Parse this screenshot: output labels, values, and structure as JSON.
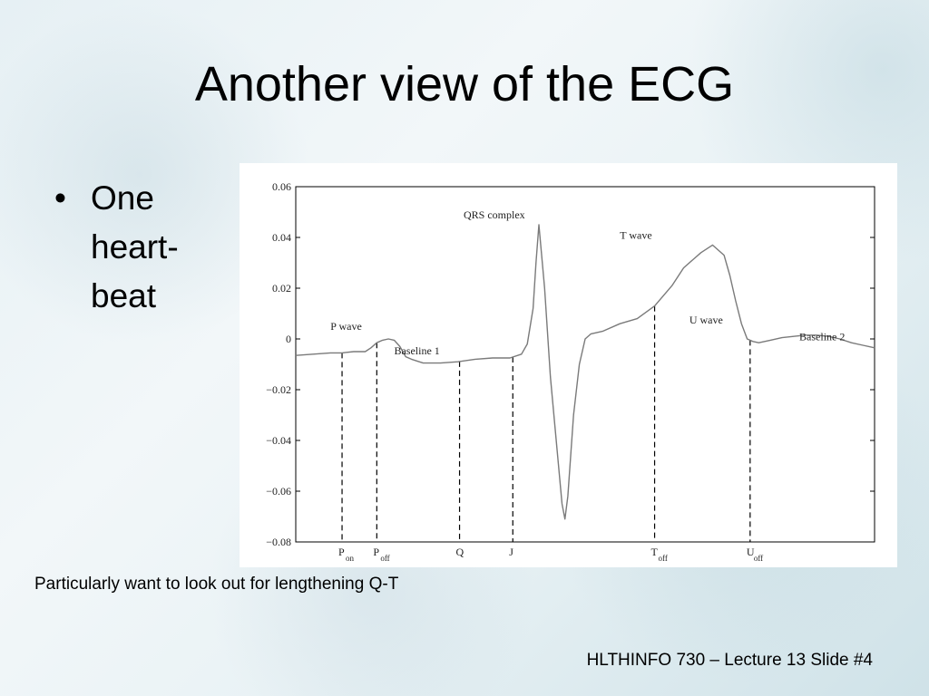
{
  "slide": {
    "title": "Another view of the ECG",
    "bullets": [
      "One heart-beat"
    ],
    "caption": "Particularly want to look out for lengthening Q-T",
    "footer": "HLTHINFO 730 – Lecture 13 Slide #4"
  },
  "chart_data": {
    "type": "line",
    "title": "",
    "xlabel": "",
    "ylabel": "",
    "ylim": [
      -0.08,
      0.06
    ],
    "xlim": [
      0,
      100
    ],
    "grid": false,
    "yticks": [
      0.06,
      0.04,
      0.02,
      0,
      -0.02,
      -0.04,
      -0.06,
      -0.08
    ],
    "ytick_labels": [
      "0.06",
      "0.04",
      "0.02",
      "0",
      "−0.02",
      "−0.04",
      "−0.06",
      "−0.08"
    ],
    "series": [
      {
        "x": [
          0,
          3,
          6,
          8,
          10,
          12,
          13,
          14,
          15,
          16,
          17,
          18,
          19,
          20,
          22,
          25,
          28,
          31,
          34,
          37,
          39,
          40,
          41,
          41.5,
          42,
          43,
          44,
          45,
          46,
          46.5,
          47,
          48,
          49,
          50,
          51,
          53,
          56,
          59,
          62,
          65,
          67,
          70,
          72,
          74,
          75,
          76,
          77,
          78,
          79,
          80,
          81,
          82,
          84,
          86,
          88,
          90,
          92,
          94,
          96,
          98,
          100
        ],
        "y": [
          -0.0065,
          -0.006,
          -0.0055,
          -0.0055,
          -0.005,
          -0.005,
          -0.0035,
          -0.0015,
          -0.0005,
          0.0,
          -0.0005,
          -0.003,
          -0.007,
          -0.008,
          -0.0095,
          -0.0095,
          -0.009,
          -0.008,
          -0.0075,
          -0.0075,
          -0.006,
          -0.002,
          0.012,
          0.03,
          0.045,
          0.02,
          -0.015,
          -0.04,
          -0.065,
          -0.071,
          -0.062,
          -0.03,
          -0.01,
          0.0,
          0.002,
          0.003,
          0.006,
          0.008,
          0.013,
          0.021,
          0.028,
          0.034,
          0.037,
          0.033,
          0.025,
          0.015,
          0.006,
          0.0,
          -0.001,
          -0.0015,
          -0.001,
          -0.0005,
          0.0005,
          0.001,
          0.0015,
          0.0015,
          0.001,
          0.0,
          -0.0015,
          -0.0025,
          -0.0035
        ]
      }
    ],
    "annotations": [
      {
        "label": "P wave",
        "x": 6,
        "y": 0.0035
      },
      {
        "label": "Baseline 1",
        "x": 17,
        "y": -0.006
      },
      {
        "label": "QRS complex",
        "x": 29,
        "y": 0.0475
      },
      {
        "label": "T wave",
        "x": 56,
        "y": 0.0395
      },
      {
        "label": "U wave",
        "x": 68,
        "y": 0.006
      },
      {
        "label": "Baseline 2",
        "x": 87,
        "y": -0.0005
      }
    ],
    "markers": [
      {
        "name": "P",
        "sub": "on",
        "x": 8
      },
      {
        "name": "P",
        "sub": "off",
        "x": 14
      },
      {
        "name": "Q",
        "sub": "",
        "x": 28.3
      },
      {
        "name": "J",
        "sub": "",
        "x": 37.5
      },
      {
        "name": "T",
        "sub": "off",
        "x": 62
      },
      {
        "name": "U",
        "sub": "off",
        "x": 78.5
      }
    ],
    "colors": {
      "line": "#7a7a7a",
      "axes": "#000000"
    }
  }
}
